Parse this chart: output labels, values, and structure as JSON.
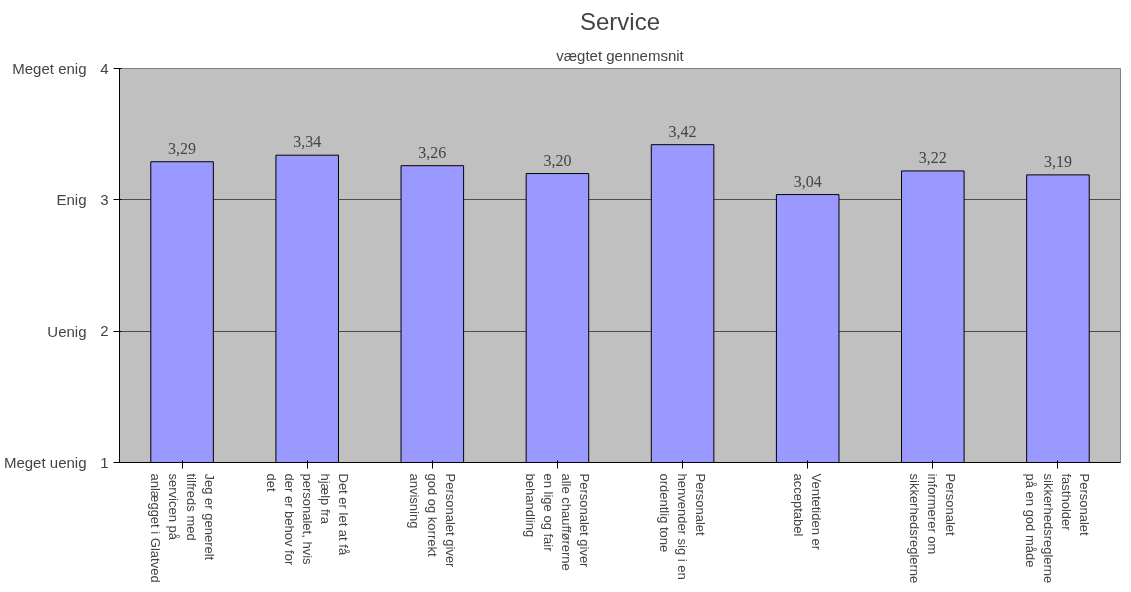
{
  "chart_data": {
    "type": "bar",
    "title": "Service",
    "subtitle": "vægtet gennemsnit",
    "categories": [
      "Jeg er generelt tilfreds med servicen på anlægget i Glatved",
      "Det er let at få hjælp fra personalet, hvis der er behov for det",
      "Personalet giver god og korrekt anvisning",
      "Personalet giver alle chaufførerne en lige og fair behandling",
      "Personalet henvender sig i en ordentlig tone",
      "Ventetiden er acceptabel",
      "Personalet informerer om sikkerhedsreglerne",
      "Personalet fastholder sikkerhedsreglerne på en god måde"
    ],
    "values": [
      3.29,
      3.34,
      3.26,
      3.2,
      3.42,
      3.04,
      3.22,
      3.19
    ],
    "value_labels": [
      "3,29",
      "3,34",
      "3,26",
      "3,20",
      "3,42",
      "3,04",
      "3,22",
      "3,19"
    ],
    "color": "#9999ff",
    "ylim": [
      1,
      4
    ],
    "yticks": [
      1,
      2,
      3,
      4
    ],
    "annotations": [
      "Meget uenig",
      "Uenig",
      "Enig",
      "Meget enig"
    ],
    "grid": "y"
  }
}
